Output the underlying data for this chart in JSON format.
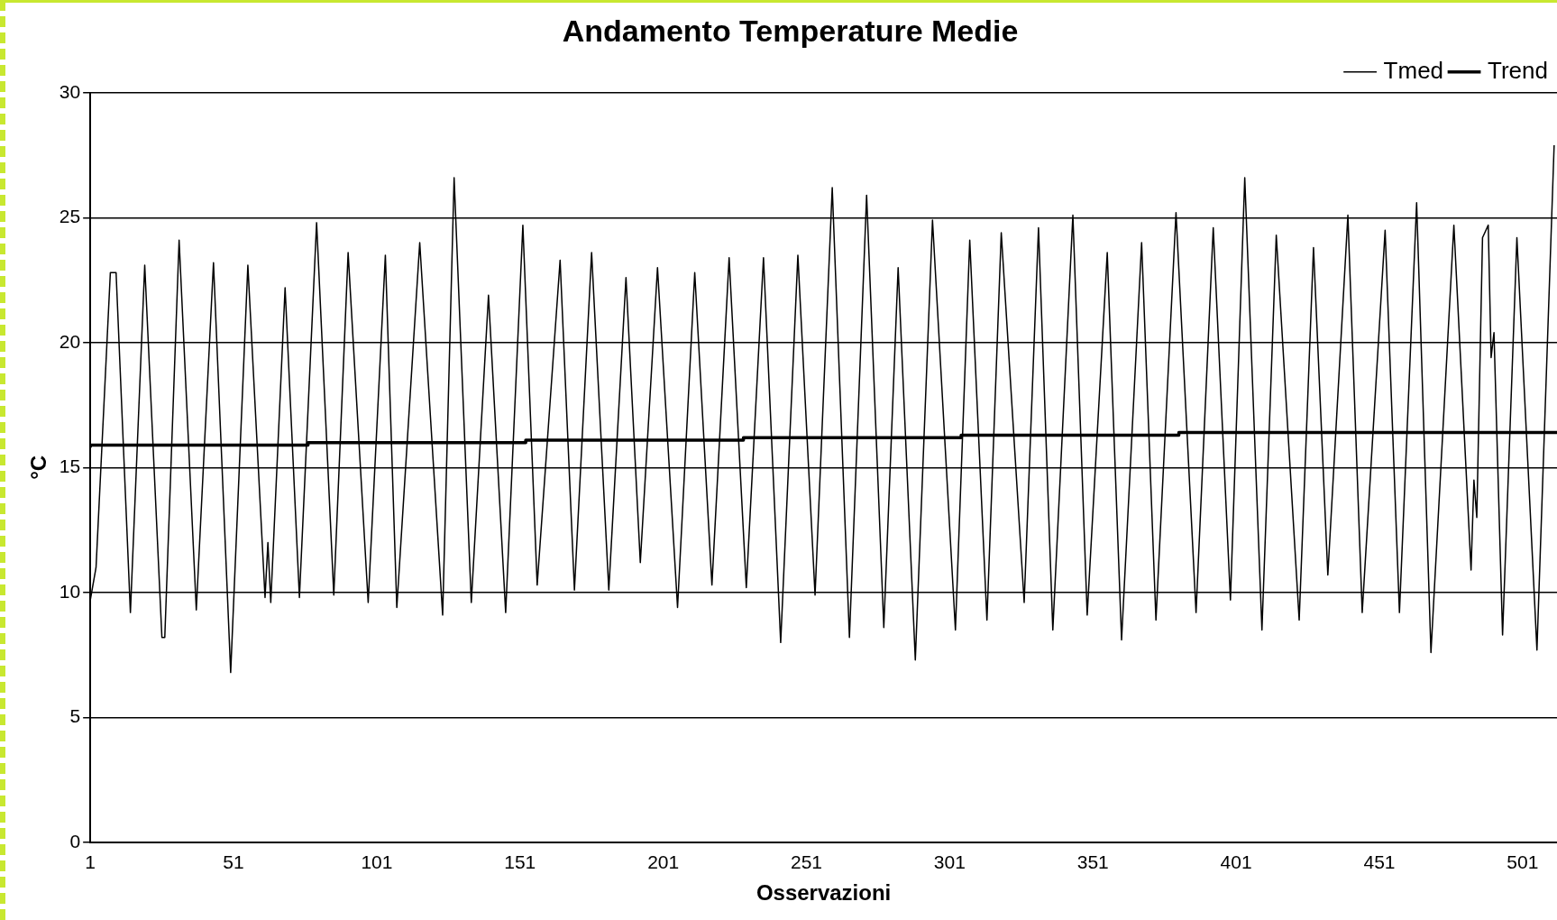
{
  "chart_data": {
    "type": "line",
    "title": "Andamento Temperature Medie",
    "xlabel": "Osservazioni",
    "ylabel": "°C",
    "xlim": [
      1,
      513
    ],
    "xticks": [
      1,
      51,
      101,
      151,
      201,
      251,
      301,
      351,
      401,
      451,
      501
    ],
    "ylim": [
      0,
      30
    ],
    "yticks": [
      0,
      5,
      10,
      15,
      20,
      25,
      30
    ],
    "grid": "y",
    "legend": "top right",
    "marker": "none",
    "line_style": "solid",
    "series": [
      {
        "name": "Tmed",
        "color": "#000000",
        "type": "line",
        "x": [
          1,
          3,
          8,
          10,
          15,
          20,
          26,
          27,
          32,
          38,
          44,
          50,
          56,
          62,
          63,
          64,
          69,
          74,
          80,
          86,
          91,
          98,
          104,
          108,
          116,
          124,
          128,
          134,
          140,
          146,
          152,
          157,
          165,
          170,
          176,
          182,
          188,
          193,
          199,
          206,
          212,
          218,
          224,
          230,
          236,
          242,
          248,
          254,
          260,
          266,
          272,
          278,
          283,
          289,
          295,
          303,
          308,
          314,
          319,
          327,
          332,
          337,
          344,
          349,
          356,
          361,
          368,
          373,
          380,
          387,
          393,
          399,
          404,
          410,
          415,
          423,
          428,
          433,
          440,
          445,
          453,
          458,
          464,
          469,
          477,
          483,
          484,
          485,
          487,
          489,
          490,
          491,
          494,
          499,
          506,
          512
        ],
        "values": [
          9.7,
          11,
          22.8,
          22.8,
          9.2,
          23.1,
          8.2,
          8.2,
          24.1,
          9.3,
          23.2,
          6.8,
          23.1,
          9.8,
          12,
          9.6,
          22.2,
          9.8,
          24.8,
          9.9,
          23.6,
          9.6,
          23.5,
          9.4,
          24,
          9.1,
          26.6,
          9.6,
          21.9,
          9.2,
          24.7,
          10.3,
          23.3,
          10.1,
          23.6,
          10.1,
          22.6,
          11.2,
          23,
          9.4,
          22.8,
          10.3,
          23.4,
          10.2,
          23.4,
          8,
          23.5,
          9.9,
          26.2,
          8.2,
          25.9,
          8.6,
          23,
          7.3,
          24.9,
          8.5,
          24.1,
          8.9,
          24.4,
          9.6,
          24.6,
          8.5,
          25.1,
          9.1,
          23.6,
          8.1,
          24,
          8.9,
          25.2,
          9.2,
          24.6,
          9.7,
          26.6,
          8.5,
          24.3,
          8.9,
          23.8,
          10.7,
          25.1,
          9.2,
          24.5,
          9.2,
          25.6,
          7.6,
          24.7,
          10.9,
          14.5,
          13,
          24.2,
          24.7,
          19.4,
          20.4,
          8.3,
          24.2,
          7.7,
          27.9
        ]
      },
      {
        "name": "Trend",
        "color": "#000000",
        "type": "step",
        "x": [
          1,
          77,
          153,
          229,
          305,
          381,
          457,
          513
        ],
        "values": [
          15.8,
          15.9,
          16.0,
          16.1,
          16.2,
          16.3,
          16.4,
          16.4
        ]
      }
    ]
  }
}
